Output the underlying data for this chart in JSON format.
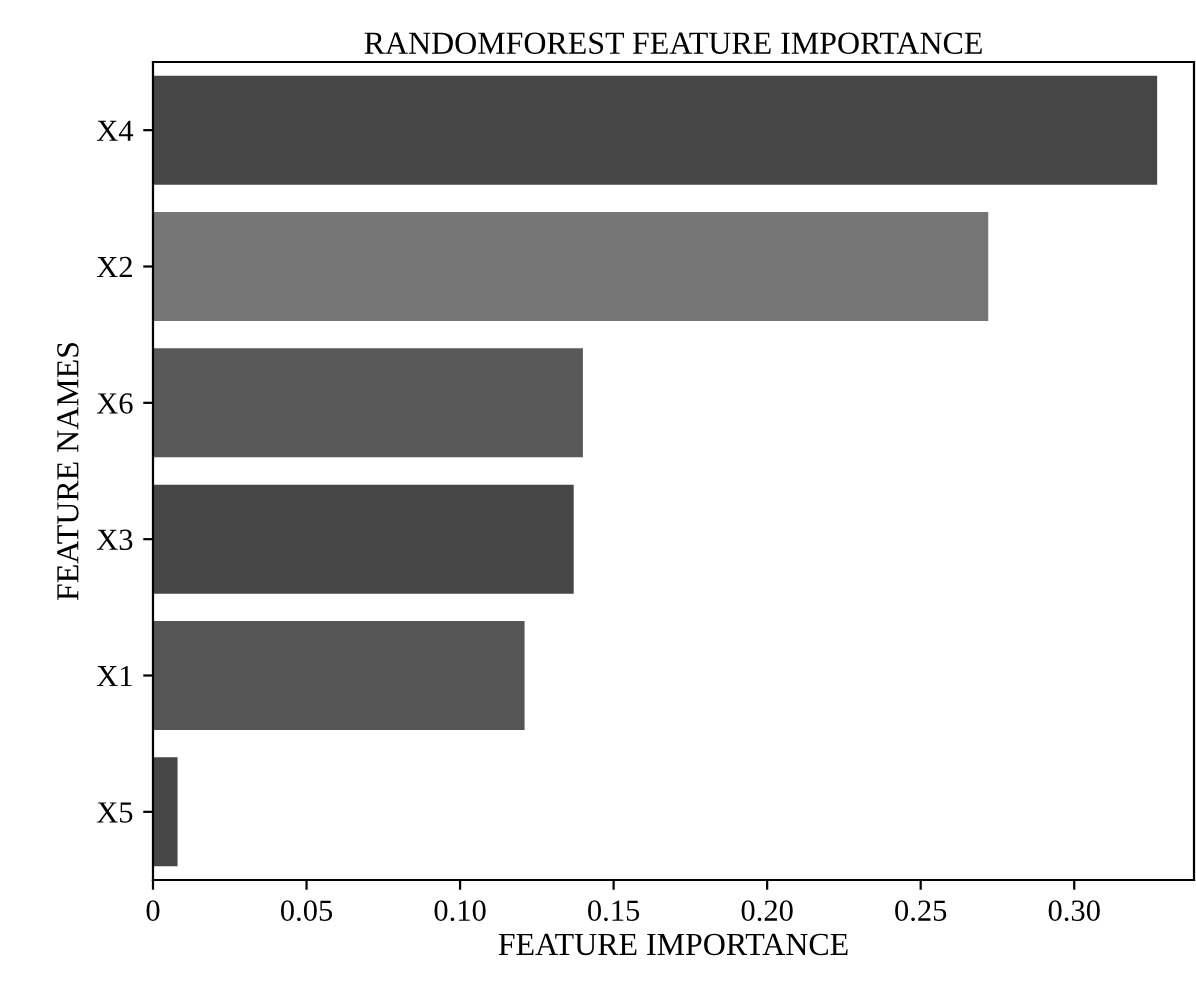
{
  "chart_data": {
    "type": "bar",
    "orientation": "horizontal",
    "title": "RANDOMFOREST FEATURE IMPORTANCE",
    "xlabel": "FEATURE IMPORTANCE",
    "ylabel": "FEATURE NAMES",
    "categories": [
      "X4",
      "X2",
      "X6",
      "X3",
      "X1",
      "X5"
    ],
    "values": [
      0.327,
      0.272,
      0.14,
      0.137,
      0.121,
      0.008
    ],
    "colors": [
      "#464646",
      "#767676",
      "#595959",
      "#464646",
      "#555555",
      "#464646"
    ],
    "xlim": [
      0,
      0.339
    ],
    "xticks": [
      {
        "value": 0,
        "label": "0"
      },
      0.05,
      {
        "value": 0.1,
        "label": "0.10"
      },
      0.15,
      {
        "value": 0.2,
        "label": "0.20"
      },
      0.25,
      {
        "value": 0.3,
        "label": "0.30"
      }
    ],
    "grid": false
  }
}
